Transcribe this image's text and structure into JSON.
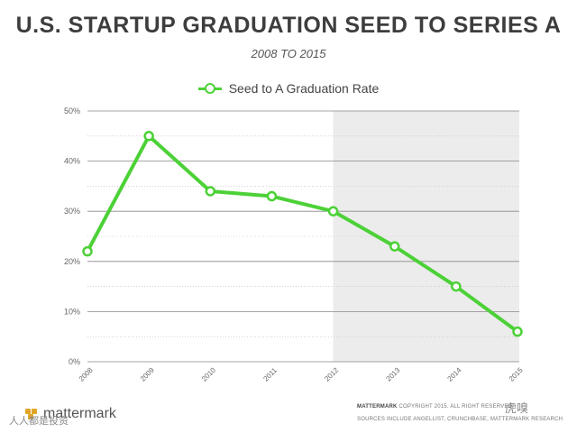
{
  "title": "U.S. STARTUP GRADUATION SEED TO SERIES A",
  "subtitle": "2008 TO 2015",
  "legend_label": "Seed to A Graduation Rate",
  "colors": {
    "line": "#4cd137",
    "shade": "#ececec",
    "grid": "#888888"
  },
  "chart_data": {
    "type": "line",
    "categories": [
      "2008",
      "2009",
      "2010",
      "2011",
      "2012",
      "2013",
      "2014",
      "2015"
    ],
    "series": [
      {
        "name": "Seed to A Graduation Rate",
        "values": [
          22,
          45,
          34,
          33,
          30,
          23,
          15,
          6
        ]
      }
    ],
    "y_ticks": [
      "0%",
      "10%",
      "20%",
      "30%",
      "40%",
      "50%"
    ],
    "ylim": [
      0,
      50
    ],
    "shaded_region": [
      "2012",
      "2015"
    ],
    "grid": true,
    "legend_position": "top-center"
  },
  "footer": {
    "brand": "mattermark",
    "copyright_brand": "MATTERMARK",
    "copyright": "COPYRIGHT 2015. ALL RIGHT RESERVED.",
    "sources": "SOURCES INCLUDE ANGELLIST, CRUNCHBASE, MATTERMARK RESEARCH"
  },
  "watermarks": {
    "bottom_left": "人人都是投资",
    "bottom_right": "虎嗅"
  }
}
